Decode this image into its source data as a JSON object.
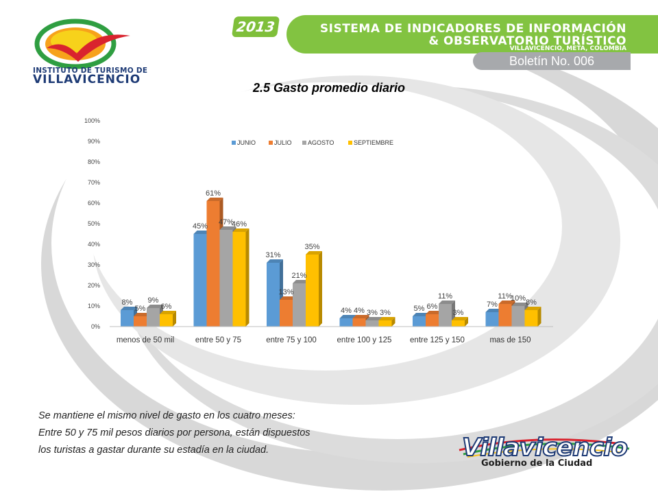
{
  "header": {
    "year": "2013",
    "line1": "SISTEMA DE INDICADORES DE INFORMACIÓN",
    "line2": "& OBSERVATORIO TURÍSTICO",
    "line3": "VILLAVICENCIO, META, COLOMBIA",
    "bulletin": "Boletín No. 006"
  },
  "logo_left": {
    "line1": "INSTITUTO DE TURISMO DE",
    "line2": "VILLAVICENCIO"
  },
  "logo_right": {
    "line1": "Villavicencio",
    "line2": "Gobierno de la Ciudad"
  },
  "description": [
    "Se mantiene el mismo nivel de gasto en los cuatro meses:",
    "Entre 50 y 75 mil pesos diarios por persona, están dispuestos",
    "los turistas a gastar durante su estadía en la ciudad."
  ],
  "colors": {
    "accent_green": "#82c341",
    "gray": "#a7a9ac"
  },
  "chart_data": {
    "type": "bar",
    "title": "2.5 Gasto promedio diario",
    "categories": [
      "menos de 50 mil",
      "entre 50 y 75",
      "entre 75 y 100",
      "entre 100 y 125",
      "entre 125 y 150",
      "mas de 150"
    ],
    "series": [
      {
        "name": "JUNIO",
        "color": "#5b9bd5",
        "values": [
          8,
          45,
          31,
          4,
          5,
          7
        ]
      },
      {
        "name": "JULIO",
        "color": "#ed7d31",
        "values": [
          5,
          61,
          13,
          4,
          6,
          11
        ]
      },
      {
        "name": "AGOSTO",
        "color": "#a5a5a5",
        "values": [
          9,
          47,
          21,
          3,
          11,
          10
        ]
      },
      {
        "name": "SEPTIEMBRE",
        "color": "#ffc000",
        "values": [
          6,
          46,
          35,
          3,
          3,
          8
        ]
      }
    ],
    "yticks": [
      "0%",
      "10%",
      "20%",
      "30%",
      "40%",
      "50%",
      "60%",
      "70%",
      "80%",
      "90%",
      "100%"
    ],
    "ylim": [
      0,
      100
    ],
    "grid": false,
    "legend": "top"
  }
}
